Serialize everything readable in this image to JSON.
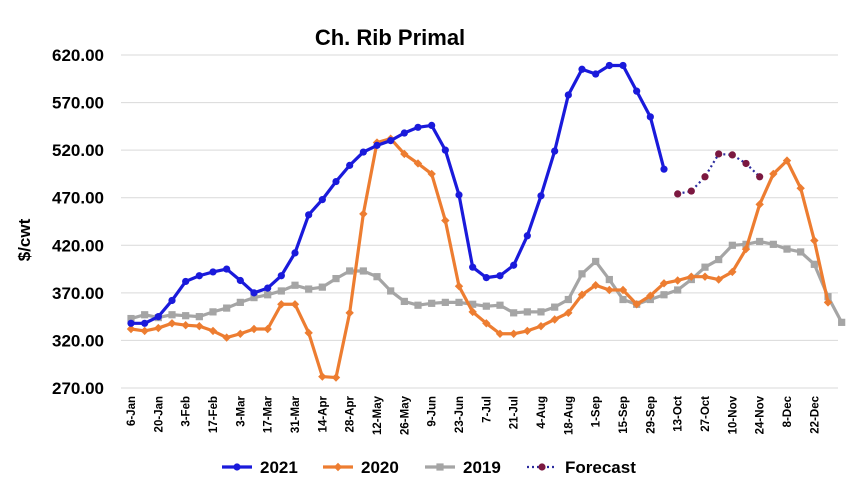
{
  "chart_data": {
    "type": "line",
    "title": "Ch. Rib Primal",
    "ylabel": "$/cwt",
    "xlabel": "",
    "ylim": [
      270,
      620
    ],
    "yticks": [
      "270.00",
      "320.00",
      "370.00",
      "420.00",
      "470.00",
      "520.00",
      "570.00",
      "620.00"
    ],
    "grid": "horizontal",
    "legend_position": "bottom",
    "x_tick_labels": [
      "6-Jan",
      "20-Jan",
      "3-Feb",
      "17-Feb",
      "3-Mar",
      "17-Mar",
      "31-Mar",
      "14-Apr",
      "28-Apr",
      "12-May",
      "26-May",
      "9-Jun",
      "23-Jun",
      "7-Jul",
      "21-Jul",
      "4-Aug",
      "18-Aug",
      "1-Sep",
      "15-Sep",
      "29-Sep",
      "13-Oct",
      "27-Oct",
      "10-Nov",
      "24-Nov",
      "8-Dec",
      "22-Dec"
    ],
    "series": [
      {
        "name": "2021",
        "color": "#1a1adb",
        "marker": "circle",
        "style": "solid",
        "start_week": 0,
        "values": [
          338,
          338,
          345,
          362,
          382,
          388,
          392,
          395,
          383,
          370,
          375,
          388,
          412,
          452,
          468,
          487,
          504,
          518,
          525,
          530,
          538,
          544,
          546,
          520,
          473,
          397,
          386,
          388,
          399,
          430,
          472,
          519,
          578,
          605,
          600,
          609,
          609,
          582,
          555,
          500
        ]
      },
      {
        "name": "2020",
        "color": "#ed7d31",
        "marker": "diamond",
        "style": "solid",
        "start_week": 0,
        "values": [
          332,
          330,
          333,
          338,
          336,
          335,
          330,
          323,
          327,
          332,
          332,
          358,
          358,
          328,
          282,
          281,
          349,
          453,
          528,
          532,
          516,
          506,
          495,
          446,
          377,
          350,
          338,
          327,
          327,
          330,
          335,
          342,
          349,
          368,
          378,
          373,
          373,
          358,
          367,
          380,
          383,
          387,
          387,
          384,
          392,
          416,
          463,
          495,
          509,
          480,
          425,
          360
        ]
      },
      {
        "name": "2019",
        "color": "#a5a5a5",
        "marker": "square",
        "style": "solid",
        "start_week": 0,
        "values": [
          343,
          347,
          344,
          347,
          346,
          345,
          350,
          354,
          360,
          365,
          368,
          372,
          378,
          374,
          376,
          385,
          393,
          393,
          387,
          372,
          361,
          357,
          359,
          360,
          360,
          358,
          356,
          357,
          349,
          350,
          350,
          355,
          363,
          390,
          403,
          384,
          363,
          358,
          363,
          368,
          373,
          384,
          397,
          405,
          420,
          421,
          424,
          421,
          416,
          413,
          400,
          366,
          339
        ]
      },
      {
        "name": "Forecast",
        "color": "#7b1840",
        "line_color": "#2b2b9e",
        "marker": "circle",
        "style": "dotted",
        "start_week": 40,
        "values": [
          474,
          477,
          492,
          516,
          515,
          506,
          492
        ]
      }
    ]
  }
}
